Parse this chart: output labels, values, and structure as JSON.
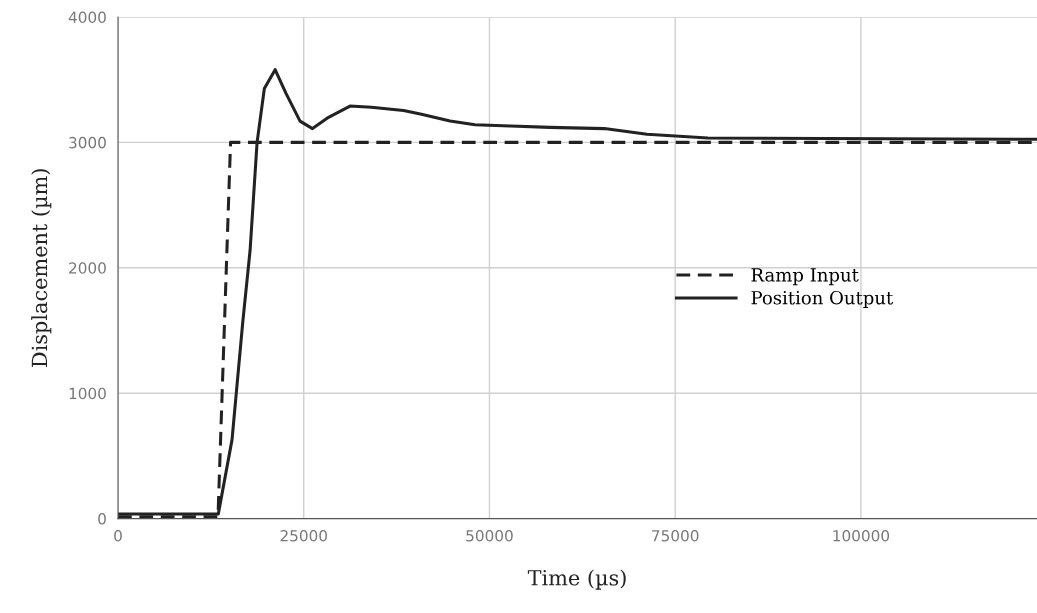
{
  "chart_data": {
    "type": "line",
    "xlabel": "Time (µs)",
    "ylabel": "Displacement (µm)",
    "xlim": [
      0,
      123700
    ],
    "xticks": [
      0,
      25000,
      50000,
      75000,
      100000
    ],
    "ylim": [
      0,
      4000
    ],
    "yticks": [
      0,
      1000,
      2000,
      3000,
      4000
    ],
    "grid": true,
    "legend": "right",
    "marker": "none",
    "series": [
      {
        "name": "Ramp Input",
        "color": "#222222",
        "line_style": "dashed",
        "x": [
          0,
          13460,
          15150,
          123700
        ],
        "values": [
          15,
          15,
          3000,
          3000
        ]
      },
      {
        "name": "Position Output",
        "color": "#222222",
        "line_style": "solid",
        "x": [
          0,
          13500,
          15350,
          16800,
          17780,
          18720,
          19700,
          21150,
          22580,
          24500,
          26180,
          28340,
          31230,
          34100,
          38440,
          40850,
          44700,
          48050,
          52860,
          58140,
          65460,
          71200,
          79400,
          123700
        ],
        "values": [
          36,
          36,
          630,
          1570,
          2140,
          3000,
          3430,
          3580,
          3395,
          3170,
          3110,
          3200,
          3290,
          3280,
          3255,
          3225,
          3170,
          3140,
          3130,
          3120,
          3110,
          3065,
          3035,
          3025
        ]
      }
    ]
  }
}
